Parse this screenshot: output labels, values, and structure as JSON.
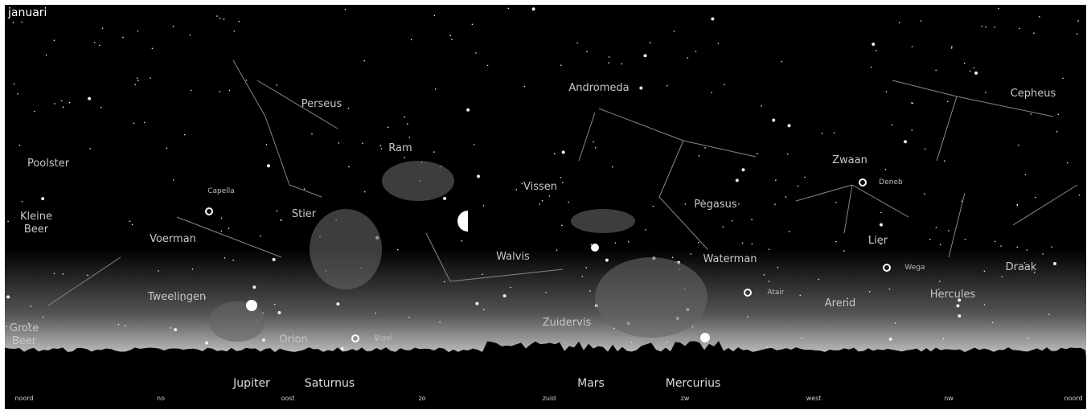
{
  "title": "januari",
  "constellations": [
    "Perseus",
    "Andromeda",
    "Cepheus",
    "Poolster",
    "Ram",
    "Vissen",
    "Zwaan",
    "Stier",
    "Pegasus",
    "Kleine Beer",
    "Voerman",
    "Walvis",
    "Lier",
    "Waterman",
    "Draak",
    "Tweelingen",
    "Arend",
    "Hercules",
    "Grote Beer",
    "Orion",
    "Zuidervis"
  ],
  "stars": [
    "Deneb",
    "Capella",
    "Wega",
    "Atair",
    "Rigel"
  ],
  "planets": [
    "Jupiter",
    "Saturnus",
    "Mars",
    "Mercurius"
  ],
  "directions": [
    "noord",
    "no",
    "oost",
    "zo",
    "zuid",
    "zw",
    "west",
    "nw",
    "noord"
  ]
}
